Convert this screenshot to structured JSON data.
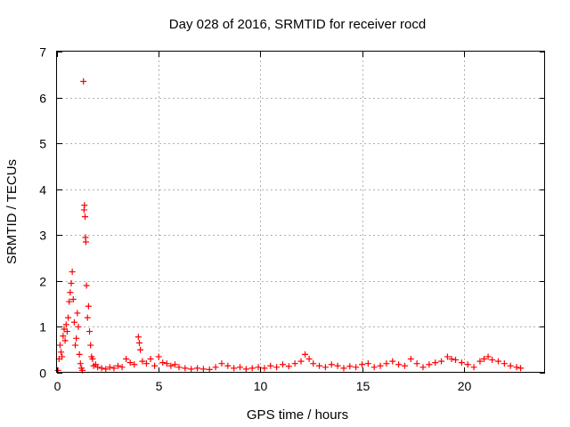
{
  "chart_data": {
    "type": "scatter",
    "title": "Day 028 of 2016, SRMTID for receiver rocd",
    "xlabel": "GPS time / hours",
    "ylabel": "SRMTID / TECUs",
    "xlim": [
      0,
      24
    ],
    "ylim": [
      0,
      7
    ],
    "xticks": [
      0,
      5,
      10,
      15,
      20
    ],
    "yticks": [
      0,
      1,
      2,
      3,
      4,
      5,
      6,
      7
    ],
    "grid": true,
    "marker": "+",
    "series": [
      {
        "name": "SRMTID",
        "color": "#ff0000",
        "x": [
          0.05,
          0.1,
          0.15,
          0.2,
          0.25,
          0.3,
          0.35,
          0.4,
          0.45,
          0.5,
          0.55,
          0.6,
          0.65,
          0.7,
          0.75,
          0.8,
          0.85,
          0.9,
          0.95,
          1.0,
          1.05,
          1.1,
          1.15,
          1.2,
          1.25,
          1.3,
          1.33,
          1.35,
          1.38,
          1.4,
          1.42,
          1.45,
          1.5,
          1.55,
          1.6,
          1.65,
          1.7,
          1.75,
          1.8,
          1.9,
          2.0,
          2.2,
          2.4,
          2.6,
          2.8,
          3.0,
          3.2,
          3.4,
          3.6,
          3.8,
          4.0,
          4.05,
          4.1,
          4.2,
          4.4,
          4.6,
          4.8,
          5.0,
          5.2,
          5.4,
          5.6,
          5.8,
          6.0,
          6.3,
          6.6,
          6.9,
          7.2,
          7.5,
          7.8,
          8.1,
          8.4,
          8.7,
          9.0,
          9.3,
          9.6,
          9.9,
          10.2,
          10.5,
          10.8,
          11.1,
          11.4,
          11.7,
          12.0,
          12.2,
          12.4,
          12.6,
          12.9,
          13.2,
          13.5,
          13.8,
          14.1,
          14.4,
          14.7,
          15.0,
          15.3,
          15.6,
          15.9,
          16.2,
          16.5,
          16.8,
          17.1,
          17.4,
          17.7,
          18.0,
          18.3,
          18.6,
          18.9,
          19.2,
          19.4,
          19.6,
          19.9,
          20.2,
          20.5,
          20.8,
          21.0,
          21.2,
          21.4,
          21.7,
          22.0,
          22.3,
          22.6,
          22.8
        ],
        "y": [
          0.05,
          0.3,
          0.6,
          0.45,
          0.35,
          0.8,
          0.95,
          0.7,
          1.05,
          0.9,
          1.2,
          1.55,
          1.75,
          1.95,
          2.2,
          1.6,
          1.1,
          0.6,
          0.75,
          1.3,
          1.0,
          0.4,
          0.2,
          0.1,
          0.05,
          6.35,
          3.55,
          3.65,
          3.4,
          2.95,
          2.85,
          1.9,
          1.2,
          1.45,
          0.9,
          0.6,
          0.35,
          0.3,
          0.15,
          0.18,
          0.12,
          0.1,
          0.08,
          0.12,
          0.1,
          0.15,
          0.12,
          0.3,
          0.22,
          0.18,
          0.78,
          0.65,
          0.5,
          0.25,
          0.2,
          0.3,
          0.15,
          0.35,
          0.22,
          0.2,
          0.15,
          0.18,
          0.12,
          0.1,
          0.08,
          0.1,
          0.08,
          0.07,
          0.12,
          0.2,
          0.15,
          0.1,
          0.12,
          0.08,
          0.1,
          0.12,
          0.1,
          0.15,
          0.12,
          0.18,
          0.14,
          0.2,
          0.25,
          0.4,
          0.3,
          0.2,
          0.15,
          0.12,
          0.18,
          0.15,
          0.1,
          0.14,
          0.12,
          0.18,
          0.2,
          0.12,
          0.15,
          0.2,
          0.25,
          0.18,
          0.15,
          0.3,
          0.2,
          0.12,
          0.18,
          0.22,
          0.25,
          0.35,
          0.3,
          0.28,
          0.22,
          0.18,
          0.12,
          0.25,
          0.3,
          0.35,
          0.28,
          0.25,
          0.2,
          0.15,
          0.12,
          0.1
        ]
      }
    ]
  }
}
